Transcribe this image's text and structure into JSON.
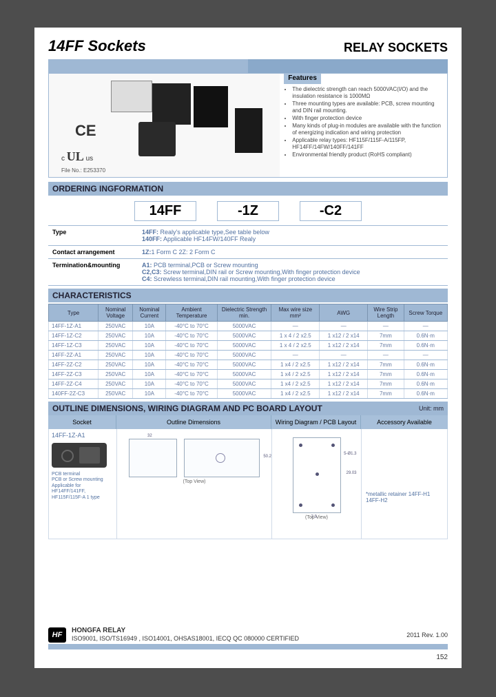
{
  "header": {
    "title": "14FF Sockets",
    "subtitle": "RELAY SOCKETS"
  },
  "hero": {
    "ce": "CE",
    "ul": "c UL us",
    "file_no": "File No.: E253370",
    "features_title": "Features",
    "features": [
      "The dielectric strength can reach 5000VAC(I/O) and the insulation resistance is 1000MΩ",
      "Three mounting types are available: PCB, screw mounting and DIN rail mounting.",
      "With finger protection device",
      "Many kinds of plug-in modules are available with the function of energizing indication and wiring protection",
      "Applicable relay types: HF115F/115F-A/115FP, HF14FF/14FW/140FF/141FF",
      "Environmental friendly product (RoHS compliant)"
    ]
  },
  "ordering": {
    "section": "ORDERING INGFORMATION",
    "boxes": [
      "14FF",
      "-1Z",
      "-C2"
    ],
    "rows": [
      {
        "label": "Type",
        "text": "14FF: Realy's applicable type,See table below\n140FF: Applicable HF14FW/140FF Realy"
      },
      {
        "label": "Contact arrangement",
        "text": "1Z:1 Form C    2Z: 2 Form C"
      },
      {
        "label": "Termination&mounting",
        "text": "A1: PCB terminal,PCB or Screw mounting\nC2,C3: Screw terminal,DIN rail or Screw mounting,With finger protection device\nC4:  Screwless terminal,DIN rail mounting,With finger protection device"
      }
    ]
  },
  "char": {
    "section": "CHARACTERISTICS",
    "headers": [
      "Type",
      "Nominal Voltage",
      "Nominal Current",
      "Ambient Temperature",
      "Dielectric Strength min.",
      "Max wire size mm²",
      "AWG",
      "Wire Strip Length",
      "Screw Torque"
    ],
    "col_widths": [
      "66px",
      "46px",
      "44px",
      "68px",
      "72px",
      "64px",
      "64px",
      "48px",
      "58px"
    ],
    "rows": [
      [
        "14FF-1Z-A1",
        "250VAC",
        "10A",
        "-40°C to 70°C",
        "5000VAC",
        "—",
        "—",
        "—",
        "—"
      ],
      [
        "14FF-1Z-C2",
        "250VAC",
        "10A",
        "-40°C to 70°C",
        "5000VAC",
        "1 x 4 / 2 x2.5",
        "1 x12 / 2 x14",
        "7mm",
        "0.6N·m"
      ],
      [
        "14FF-1Z-C3",
        "250VAC",
        "10A",
        "-40°C to 70°C",
        "5000VAC",
        "1 x 4 / 2 x2.5",
        "1 x12 / 2 x14",
        "7mm",
        "0.6N·m"
      ],
      [
        "14FF-2Z-A1",
        "250VAC",
        "10A",
        "-40°C to 70°C",
        "5000VAC",
        "—",
        "—",
        "—",
        "—"
      ],
      [
        "14FF-2Z-C2",
        "250VAC",
        "10A",
        "-40°C to 70°C",
        "5000VAC",
        "1 x4 / 2 x2.5",
        "1 x12 / 2 x14",
        "7mm",
        "0.6N·m"
      ],
      [
        "14FF-2Z-C3",
        "250VAC",
        "10A",
        "-40°C to 70°C",
        "5000VAC",
        "1 x4 / 2 x2.5",
        "1 x12 / 2 x14",
        "7mm",
        "0.6N·m"
      ],
      [
        "14FF-2Z-C4",
        "250VAC",
        "10A",
        "-40°C to 70°C",
        "5000VAC",
        "1 x4 / 2 x2.5",
        "1 x12 / 2 x14",
        "7mm",
        "0.6N·m"
      ],
      [
        "140FF-2Z-C3",
        "250VAC",
        "10A",
        "-40°C to 70°C",
        "5000VAC",
        "1 x4 / 2 x2.5",
        "1 x12 / 2 x14",
        "7mm",
        "0.6N·m"
      ]
    ]
  },
  "outline": {
    "section": "OUTLINE DIMENSIONS, WIRING DIAGRAM AND PC BOARD LAYOUT",
    "unit": "Unit: mm",
    "subheaders": [
      "Socket",
      "Outline Dimensions",
      "Wiring Diagram / PCB Layout",
      "Accessory Available"
    ],
    "col_flex": [
      "98px",
      "225px",
      "130px",
      "1"
    ],
    "socket_label": "14FF-1Z-A1",
    "socket_desc": "PCB terminal\nPCB or Screw mounting\nApplicable for HF14FF/141FF,\nHF115F/115F-A 1 type",
    "topview": "(Top View)",
    "accessory": "*metallic retainer 14FF-H1\n14FF-H2",
    "dims": {
      "w": "32",
      "h": "50.2",
      "pitch": "7.5",
      "spacing": "29.03",
      "diag": "5-Ø1.3"
    }
  },
  "footer": {
    "brand": "HONGFA RELAY",
    "cert": "ISO9001, ISO/TS16949 , ISO14001, OHSAS18001, IECQ QC 080000 CERTIFIED",
    "rev": "2011 Rev. 1.00",
    "page": "152",
    "logo": "HF"
  },
  "colors": {
    "bar_light": "#9fb8d4",
    "bar_dark": "#8aa9ca",
    "text_link": "#5070a0"
  }
}
